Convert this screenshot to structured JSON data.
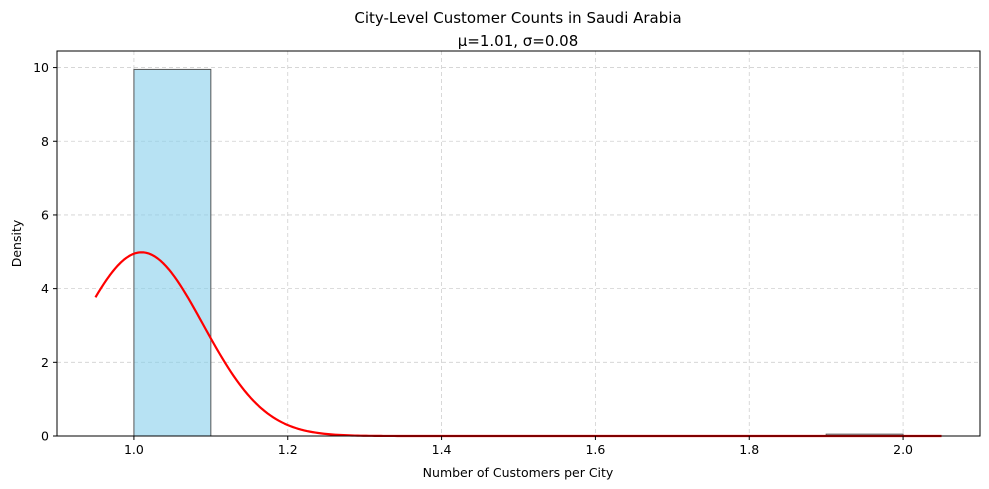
{
  "chart_data": {
    "type": "bar",
    "title": "City-Level Customer Counts in Saudi Arabia",
    "subtitle": "μ=1.01, σ=0.08",
    "xlabel": "Number of Customers per City",
    "ylabel": "Density",
    "xlim": [
      0.9,
      2.1
    ],
    "ylim": [
      0,
      10.45
    ],
    "xticks": [
      1.0,
      1.2,
      1.4,
      1.6,
      1.8,
      2.0
    ],
    "xtick_labels": [
      "1.0",
      "1.2",
      "1.4",
      "1.6",
      "1.8",
      "2.0"
    ],
    "yticks": [
      0,
      2,
      4,
      6,
      8,
      10
    ],
    "ytick_labels": [
      "0",
      "2",
      "4",
      "6",
      "8",
      "10"
    ],
    "grid": true,
    "histogram": {
      "bins": [
        {
          "start": 1.0,
          "end": 1.1,
          "density": 9.95
        },
        {
          "start": 1.1,
          "end": 1.2,
          "density": 0
        },
        {
          "start": 1.2,
          "end": 1.3,
          "density": 0
        },
        {
          "start": 1.3,
          "end": 1.4,
          "density": 0
        },
        {
          "start": 1.4,
          "end": 1.5,
          "density": 0
        },
        {
          "start": 1.5,
          "end": 1.6,
          "density": 0
        },
        {
          "start": 1.6,
          "end": 1.7,
          "density": 0
        },
        {
          "start": 1.7,
          "end": 1.8,
          "density": 0
        },
        {
          "start": 1.8,
          "end": 1.9,
          "density": 0
        },
        {
          "start": 1.9,
          "end": 2.0,
          "density": 0.05
        }
      ],
      "fill_color": "#87ceeb",
      "edge_color": "#555555"
    },
    "fit_curve": {
      "mu": 1.01,
      "sigma": 0.08,
      "x_range": [
        0.95,
        2.05
      ],
      "color": "#ff0000"
    }
  }
}
